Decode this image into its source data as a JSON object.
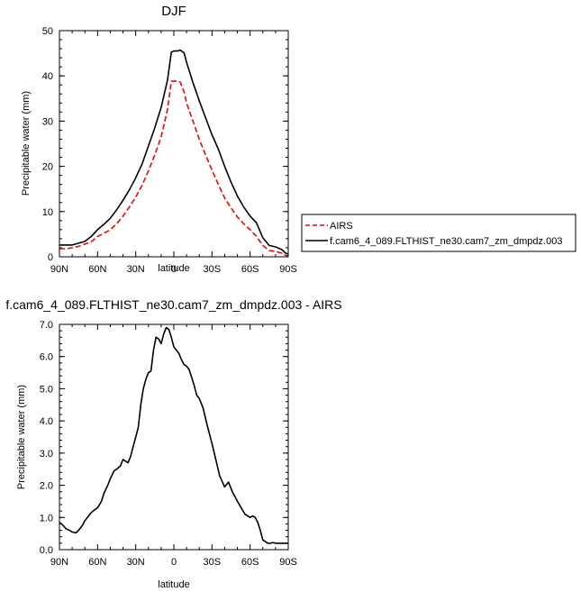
{
  "chart_data": [
    {
      "type": "line",
      "title": "DJF",
      "xlabel": "latitude",
      "ylabel": "Precipitable water (mm)",
      "xlim": [
        90,
        -90
      ],
      "ylim": [
        0,
        50
      ],
      "x_ticks": [
        90,
        60,
        30,
        0,
        -30,
        -60,
        -90
      ],
      "x_tick_labels": [
        "90N",
        "60N",
        "30N",
        "0",
        "30S",
        "60S",
        "90S"
      ],
      "y_ticks": [
        0,
        10,
        20,
        30,
        40,
        50
      ],
      "y_tick_labels": [
        "0",
        "10",
        "20",
        "30",
        "40",
        "50"
      ],
      "legend": {
        "placement": "right"
      },
      "series": [
        {
          "name": "AIRS",
          "color": "#ff0000",
          "dash": "dashed",
          "x": [
            90,
            85,
            80,
            75,
            70,
            65,
            60,
            55,
            50,
            45,
            40,
            35,
            30,
            25,
            20,
            15,
            10,
            5,
            2,
            0,
            -3,
            -5,
            -8,
            -10,
            -15,
            -20,
            -25,
            -30,
            -35,
            -40,
            -45,
            -50,
            -55,
            -60,
            -65,
            -70,
            -75,
            -80,
            -85,
            -88,
            -90
          ],
          "y": [
            1.8,
            1.8,
            2.0,
            2.3,
            2.8,
            3.3,
            4.5,
            5.2,
            6.0,
            7.3,
            9.0,
            11.0,
            13.2,
            15.8,
            19.0,
            22.5,
            26.5,
            32.5,
            38.8,
            38.8,
            38.9,
            38.6,
            36.5,
            34.0,
            30.0,
            26.0,
            22.5,
            19.2,
            16.0,
            13.0,
            10.8,
            8.8,
            7.3,
            6.0,
            4.5,
            2.5,
            1.4,
            1.2,
            0.8,
            0.3,
            0.2
          ]
        },
        {
          "name": "f.cam6_4_089.FLTHIST_ne30.cam7_zm_dmpdz.003",
          "color": "#000000",
          "dash": "solid",
          "x": [
            90,
            85,
            80,
            75,
            70,
            65,
            60,
            55,
            50,
            45,
            40,
            35,
            30,
            25,
            20,
            15,
            10,
            5,
            2,
            0,
            -3,
            -5,
            -8,
            -10,
            -15,
            -20,
            -25,
            -30,
            -35,
            -40,
            -45,
            -50,
            -55,
            -60,
            -65,
            -70,
            -75,
            -80,
            -85,
            -88,
            -90
          ],
          "y": [
            2.6,
            2.6,
            2.6,
            3.0,
            3.4,
            4.5,
            6.0,
            7.2,
            8.5,
            10.4,
            12.5,
            14.8,
            17.5,
            20.5,
            24.5,
            28.5,
            33.0,
            39.0,
            45.2,
            45.5,
            45.5,
            45.7,
            45.1,
            43.0,
            38.5,
            34.5,
            30.7,
            27.0,
            23.8,
            20.0,
            16.5,
            13.4,
            11.0,
            9.0,
            7.5,
            4.2,
            2.5,
            2.2,
            1.6,
            0.8,
            0.6
          ]
        }
      ]
    },
    {
      "type": "line",
      "title": "f.cam6_4_089.FLTHIST_ne30.cam7_zm_dmpdz.003 - AIRS",
      "xlabel": "latitude",
      "ylabel": "Precipitable water (mm)",
      "xlim": [
        90,
        -90
      ],
      "ylim": [
        0,
        7
      ],
      "x_ticks": [
        90,
        60,
        30,
        0,
        -30,
        -60,
        -90
      ],
      "x_tick_labels": [
        "90N",
        "60N",
        "30N",
        "0",
        "30S",
        "60S",
        "90S"
      ],
      "y_ticks": [
        0,
        1,
        2,
        3,
        4,
        5,
        6,
        7
      ],
      "y_tick_labels": [
        "0.0",
        "1.0",
        "2.0",
        "3.0",
        "4.0",
        "5.0",
        "6.0",
        "7.0"
      ],
      "series": [
        {
          "color": "#000000",
          "dash": "solid",
          "x": [
            90,
            87,
            85,
            82,
            80,
            77,
            75,
            72,
            70,
            67,
            65,
            62,
            60,
            57,
            55,
            52,
            50,
            47,
            45,
            42,
            40,
            38,
            36,
            34,
            32,
            30,
            28,
            26,
            24,
            22,
            20,
            18,
            16,
            14,
            12,
            10,
            8,
            6,
            4,
            2,
            0,
            -2,
            -4,
            -6,
            -8,
            -10,
            -12,
            -14,
            -16,
            -18,
            -20,
            -23,
            -26,
            -30,
            -33,
            -36,
            -40,
            -43,
            -46,
            -50,
            -53,
            -56,
            -60,
            -62,
            -64,
            -66,
            -68,
            -70,
            -72,
            -74,
            -76,
            -78,
            -80,
            -83,
            -85,
            -88,
            -90
          ],
          "y": [
            0.85,
            0.75,
            0.65,
            0.6,
            0.55,
            0.52,
            0.6,
            0.75,
            0.9,
            1.05,
            1.15,
            1.25,
            1.3,
            1.5,
            1.75,
            2.0,
            2.2,
            2.45,
            2.5,
            2.6,
            2.8,
            2.75,
            2.7,
            2.9,
            3.2,
            3.5,
            3.8,
            4.5,
            5.0,
            5.3,
            5.5,
            5.55,
            6.2,
            6.6,
            6.55,
            6.4,
            6.7,
            6.9,
            6.85,
            6.6,
            6.3,
            6.2,
            6.1,
            5.9,
            5.75,
            5.7,
            5.6,
            5.35,
            5.1,
            4.8,
            4.7,
            4.4,
            3.9,
            3.3,
            2.8,
            2.3,
            1.95,
            2.1,
            1.8,
            1.5,
            1.3,
            1.1,
            1.0,
            1.05,
            1.0,
            0.85,
            0.6,
            0.3,
            0.25,
            0.2,
            0.2,
            0.22,
            0.2,
            0.2,
            0.2,
            0.2,
            0.2
          ]
        }
      ]
    }
  ]
}
